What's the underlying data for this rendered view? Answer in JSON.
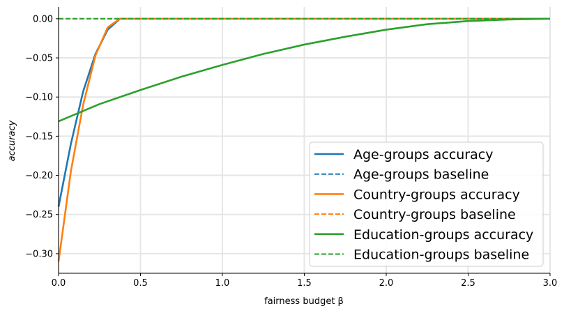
{
  "chart_data": {
    "type": "line",
    "title": "",
    "xlabel": "fairness budget β",
    "ylabel": "accuracy",
    "xlim": [
      0,
      3
    ],
    "ylim": [
      -0.325,
      0.015
    ],
    "xticks": [
      0,
      0.5,
      1,
      1.5,
      2,
      2.5,
      3
    ],
    "xtick_labels": [
      "0.0",
      "0.5",
      "1.0",
      "1.5",
      "2.0",
      "2.5",
      "3.0"
    ],
    "yticks": [
      0,
      -0.05,
      -0.1,
      -0.15,
      -0.2,
      -0.25,
      -0.3
    ],
    "ytick_labels": [
      "0.00",
      "−0.05",
      "−0.10",
      "−0.15",
      "−0.20",
      "−0.25",
      "−0.30"
    ],
    "grid": true,
    "legend_position": "bottom-right",
    "series": [
      {
        "name": "Age-groups accuracy",
        "color": "#1f77b4",
        "style": "solid",
        "x": [
          0,
          0.075,
          0.15,
          0.225,
          0.3,
          0.375,
          0.45,
          3.0
        ],
        "y": [
          -0.24,
          -0.16,
          -0.093,
          -0.045,
          -0.014,
          0.0,
          0.0,
          0.0
        ]
      },
      {
        "name": "Age-groups baseline",
        "color": "#1f77b4",
        "style": "dashed",
        "x": [
          0,
          3.0
        ],
        "y": [
          0.0,
          0.0
        ]
      },
      {
        "name": "Country-groups accuracy",
        "color": "#ff7f0e",
        "style": "solid",
        "x": [
          0,
          0.075,
          0.15,
          0.225,
          0.3,
          0.375,
          0.45,
          3.0
        ],
        "y": [
          -0.31,
          -0.195,
          -0.11,
          -0.047,
          -0.011,
          0.0,
          0.0,
          0.0
        ]
      },
      {
        "name": "Country-groups baseline",
        "color": "#ff7f0e",
        "style": "dashed",
        "x": [
          0,
          3.0
        ],
        "y": [
          0.0,
          0.0
        ]
      },
      {
        "name": "Education-groups accuracy",
        "color": "#2ca02c",
        "style": "solid",
        "x": [
          0,
          0.25,
          0.5,
          0.75,
          1.0,
          1.25,
          1.5,
          1.75,
          2.0,
          2.25,
          2.5,
          2.75,
          3.0
        ],
        "y": [
          -0.131,
          -0.109,
          -0.091,
          -0.074,
          -0.059,
          -0.045,
          -0.033,
          -0.023,
          -0.014,
          -0.007,
          -0.003,
          -0.001,
          0.0
        ]
      },
      {
        "name": "Education-groups baseline",
        "color": "#2ca02c",
        "style": "dashed",
        "x": [
          0,
          3.0
        ],
        "y": [
          0.0,
          0.0
        ]
      }
    ]
  }
}
